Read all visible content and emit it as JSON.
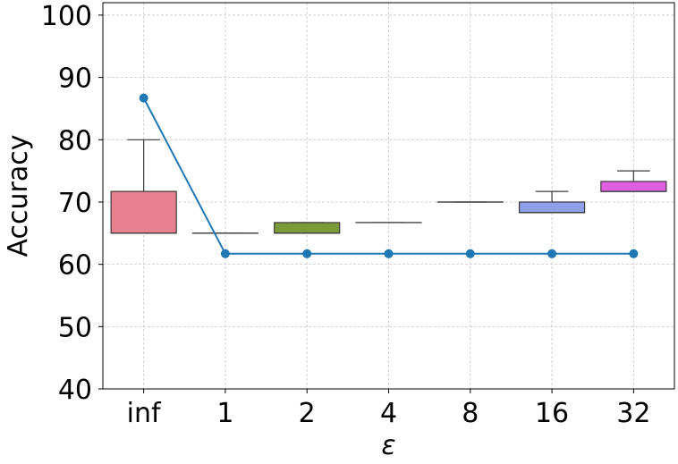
{
  "chart_data": {
    "type": "box",
    "xlabel": "ε",
    "ylabel": "Accuracy",
    "categories": [
      "inf",
      "1",
      "2",
      "4",
      "8",
      "16",
      "32"
    ],
    "ylim": [
      40,
      102
    ],
    "yticks": [
      40,
      50,
      60,
      70,
      80,
      90,
      100
    ],
    "grid": true,
    "boxes": [
      {
        "category": "inf",
        "whisker_low": 65.0,
        "q1": 65.0,
        "median": 65.0,
        "q3": 71.7,
        "whisker_high": 80.0,
        "color": "#e8808f"
      },
      {
        "category": "1",
        "whisker_low": 65.0,
        "q1": 65.0,
        "median": 65.0,
        "q3": 65.0,
        "whisker_high": 65.0,
        "color": "#d99a5a"
      },
      {
        "category": "2",
        "whisker_low": 65.0,
        "q1": 65.0,
        "median": 65.0,
        "q3": 66.7,
        "whisker_high": 66.7,
        "color": "#7d9a3a"
      },
      {
        "category": "4",
        "whisker_low": 66.7,
        "q1": 66.7,
        "median": 66.7,
        "q3": 66.7,
        "whisker_high": 66.7,
        "color": "#4aa870"
      },
      {
        "category": "8",
        "whisker_low": 70.0,
        "q1": 70.0,
        "median": 70.0,
        "q3": 70.0,
        "whisker_high": 70.0,
        "color": "#3fa7b5"
      },
      {
        "category": "16",
        "whisker_low": 68.3,
        "q1": 68.3,
        "median": 68.3,
        "q3": 70.0,
        "whisker_high": 71.7,
        "color": "#8fa0e8"
      },
      {
        "category": "32",
        "whisker_low": 71.7,
        "q1": 71.7,
        "median": 71.7,
        "q3": 73.3,
        "whisker_high": 75.0,
        "color": "#de5fe0"
      }
    ],
    "line_series": {
      "values": [
        86.7,
        61.7,
        61.7,
        61.7,
        61.7,
        61.7,
        61.7
      ],
      "color": "#1f77b4"
    }
  }
}
